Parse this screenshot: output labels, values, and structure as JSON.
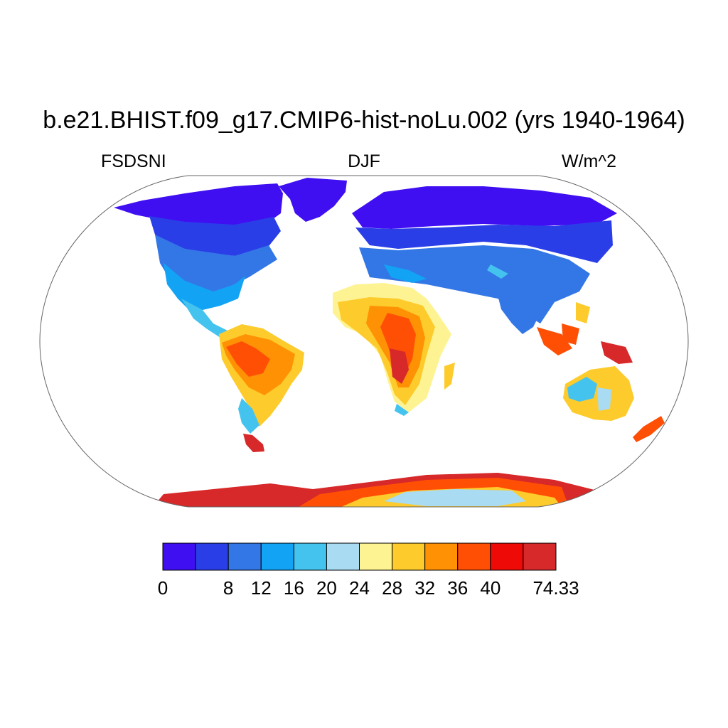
{
  "title": "b.e21.BHIST.f09_g17.CMIP6-hist-noLu.002 (yrs 1940-1964)",
  "left_subtitle": "FSDSNI",
  "center_subtitle": "DJF",
  "right_subtitle": "W/m^2",
  "colorbar": {
    "colors": [
      "#3f0ff2",
      "#2a3ee8",
      "#3377e6",
      "#12a3f5",
      "#45c3ef",
      "#a9dbf2",
      "#fef393",
      "#fdcb2b",
      "#ff9105",
      "#ff4f05",
      "#ee0a07",
      "#d7282a"
    ],
    "labels": [
      "0",
      "8",
      "12",
      "16",
      "20",
      "24",
      "28",
      "32",
      "36",
      "40",
      "74.33"
    ]
  }
}
